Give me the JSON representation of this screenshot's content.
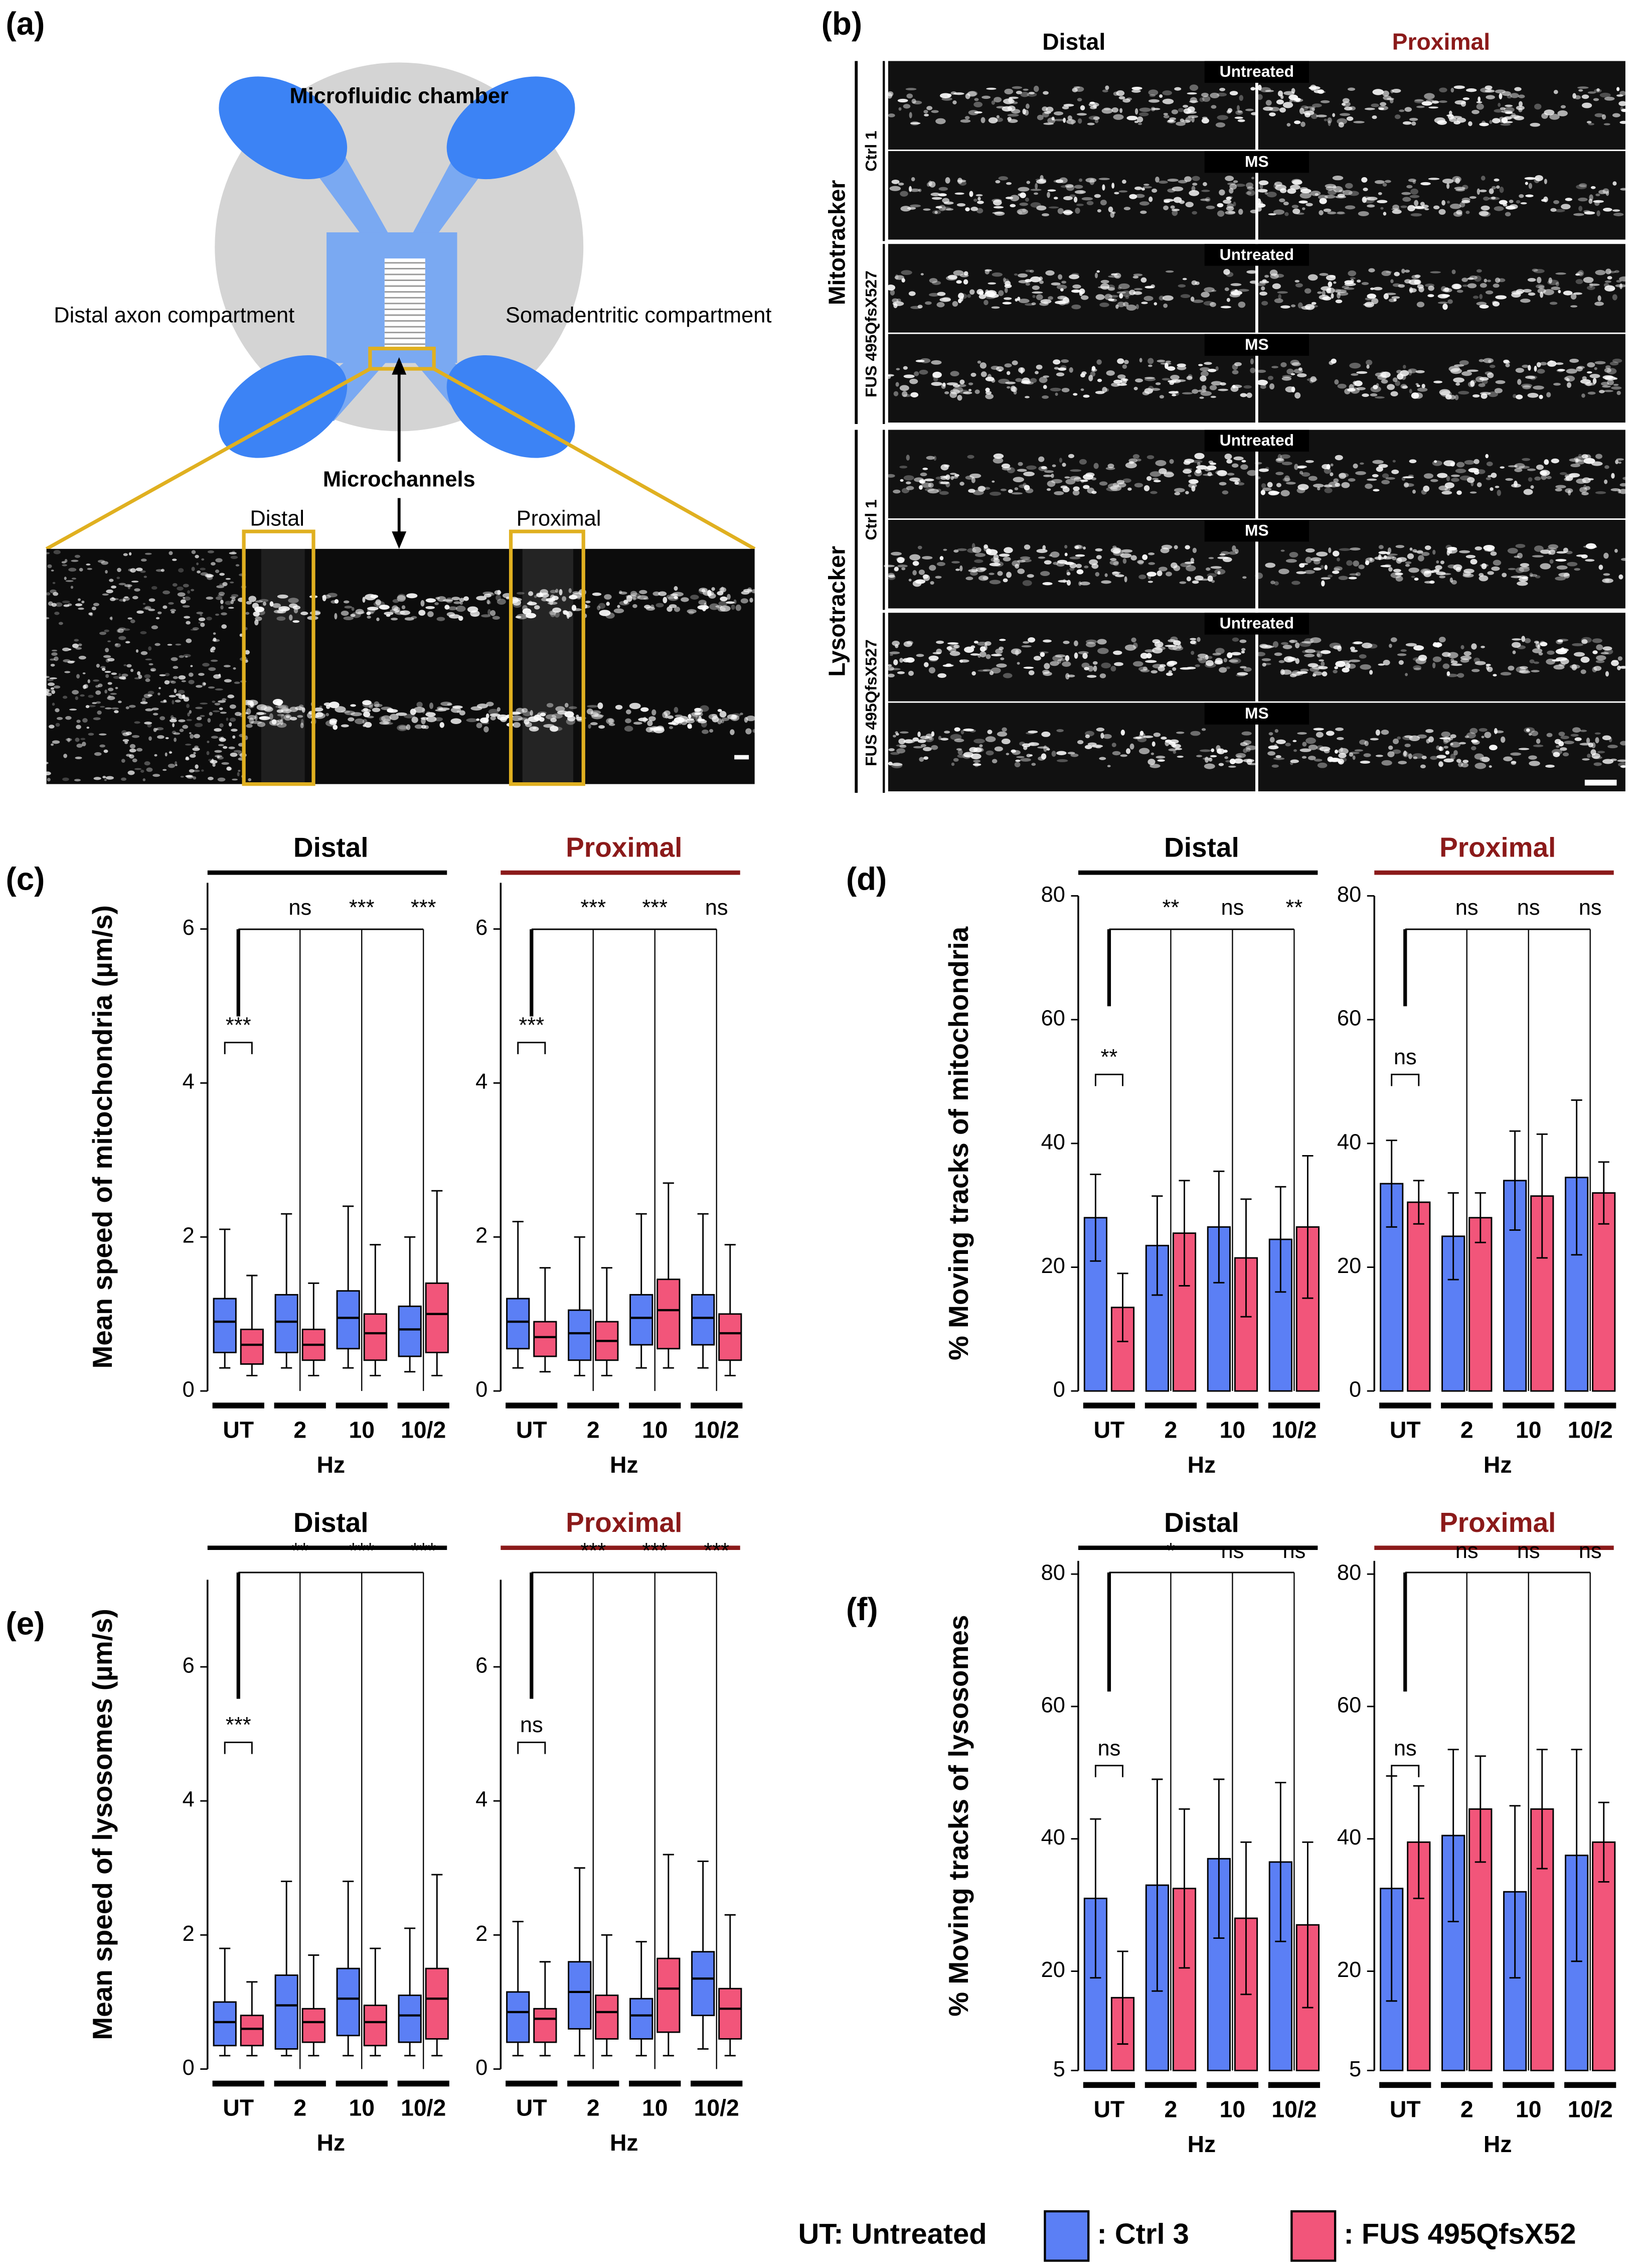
{
  "panel_a": {
    "label": "(a)",
    "title": "Microfluidic chamber",
    "left": "Distal axon compartment",
    "right": "Somadentritic compartment",
    "channels": "Microchannels",
    "distal": "Distal",
    "proximal": "Proximal"
  },
  "panel_b": {
    "label": "(b)",
    "col_headers": [
      "Distal",
      "Proximal"
    ],
    "groups": [
      {
        "name": "Mitotracker",
        "rows": [
          {
            "line": "Ctrl 1",
            "conditions": [
              "Untreated",
              "MS"
            ]
          },
          {
            "line": "FUS 495QfsX527",
            "conditions": [
              "Untreated",
              "MS"
            ]
          }
        ]
      },
      {
        "name": "Lysotracker",
        "rows": [
          {
            "line": "Ctrl 1",
            "conditions": [
              "Untreated",
              "MS"
            ]
          },
          {
            "line": "FUS 495QfsX527",
            "conditions": [
              "Untreated",
              "MS"
            ]
          }
        ]
      }
    ]
  },
  "chart_data": [
    {
      "type": "box",
      "panel": "(c)",
      "ylabel": "Mean speed of mitochondria (µm/s)",
      "xlabel": "Hz",
      "ylim": [
        0,
        6.6
      ],
      "yticks": [
        0,
        2,
        4,
        6
      ],
      "groups": [
        {
          "title": "Distal",
          "title_color": "#000000",
          "categories": [
            "UT",
            "2",
            "10",
            "10/2"
          ],
          "significance": [
            "***",
            "ns",
            "***",
            "***"
          ],
          "series": [
            {
              "color": "#5b7ff5",
              "values": [
                {
                  "whislo": 0.3,
                  "q1": 0.5,
                  "med": 0.9,
                  "q3": 1.2,
                  "whishi": 2.1
                },
                {
                  "whislo": 0.3,
                  "q1": 0.5,
                  "med": 0.9,
                  "q3": 1.25,
                  "whishi": 2.3
                },
                {
                  "whislo": 0.3,
                  "q1": 0.55,
                  "med": 0.95,
                  "q3": 1.3,
                  "whishi": 2.4
                },
                {
                  "whislo": 0.25,
                  "q1": 0.45,
                  "med": 0.8,
                  "q3": 1.1,
                  "whishi": 2.0
                }
              ]
            },
            {
              "color": "#f2557a",
              "values": [
                {
                  "whislo": 0.2,
                  "q1": 0.35,
                  "med": 0.6,
                  "q3": 0.8,
                  "whishi": 1.5
                },
                {
                  "whislo": 0.2,
                  "q1": 0.4,
                  "med": 0.6,
                  "q3": 0.8,
                  "whishi": 1.4
                },
                {
                  "whislo": 0.2,
                  "q1": 0.4,
                  "med": 0.75,
                  "q3": 1.0,
                  "whishi": 1.9
                },
                {
                  "whislo": 0.2,
                  "q1": 0.5,
                  "med": 1.0,
                  "q3": 1.4,
                  "whishi": 2.6
                }
              ]
            }
          ]
        },
        {
          "title": "Proximal",
          "title_color": "#8b1a1a",
          "categories": [
            "UT",
            "2",
            "10",
            "10/2"
          ],
          "significance": [
            "***",
            "***",
            "***",
            "ns"
          ],
          "series": [
            {
              "color": "#5b7ff5",
              "values": [
                {
                  "whislo": 0.3,
                  "q1": 0.55,
                  "med": 0.9,
                  "q3": 1.2,
                  "whishi": 2.2
                },
                {
                  "whislo": 0.2,
                  "q1": 0.4,
                  "med": 0.75,
                  "q3": 1.05,
                  "whishi": 2.0
                },
                {
                  "whislo": 0.3,
                  "q1": 0.6,
                  "med": 0.95,
                  "q3": 1.25,
                  "whishi": 2.3
                },
                {
                  "whislo": 0.3,
                  "q1": 0.6,
                  "med": 0.95,
                  "q3": 1.25,
                  "whishi": 2.3
                }
              ]
            },
            {
              "color": "#f2557a",
              "values": [
                {
                  "whislo": 0.25,
                  "q1": 0.45,
                  "med": 0.7,
                  "q3": 0.9,
                  "whishi": 1.6
                },
                {
                  "whislo": 0.2,
                  "q1": 0.4,
                  "med": 0.65,
                  "q3": 0.9,
                  "whishi": 1.6
                },
                {
                  "whislo": 0.3,
                  "q1": 0.55,
                  "med": 1.05,
                  "q3": 1.45,
                  "whishi": 2.7
                },
                {
                  "whislo": 0.2,
                  "q1": 0.4,
                  "med": 0.75,
                  "q3": 1.0,
                  "whishi": 1.9
                }
              ]
            }
          ]
        }
      ]
    },
    {
      "type": "bar",
      "panel": "(d)",
      "ylabel": "% Moving tracks of mitochondria",
      "xlabel": "Hz",
      "ylim": [
        0,
        80
      ],
      "yticks": [
        0,
        20,
        40,
        60,
        80
      ],
      "groups": [
        {
          "title": "Distal",
          "title_color": "#000000",
          "categories": [
            "UT",
            "2",
            "10",
            "10/2"
          ],
          "significance": [
            "**",
            "**",
            "ns",
            "**"
          ],
          "series": [
            {
              "color": "#5b7ff5",
              "values": [
                28,
                23.5,
                26.5,
                24.5
              ],
              "errors": [
                7,
                8,
                9,
                8.5
              ]
            },
            {
              "color": "#f2557a",
              "values": [
                13.5,
                25.5,
                21.5,
                26.5
              ],
              "errors": [
                5.5,
                8.5,
                9.5,
                11.5
              ]
            }
          ]
        },
        {
          "title": "Proximal",
          "title_color": "#8b1a1a",
          "categories": [
            "UT",
            "2",
            "10",
            "10/2"
          ],
          "significance": [
            "ns",
            "ns",
            "ns",
            "ns"
          ],
          "series": [
            {
              "color": "#5b7ff5",
              "values": [
                33.5,
                25,
                34,
                34.5
              ],
              "errors": [
                7,
                7,
                8,
                12.5
              ]
            },
            {
              "color": "#f2557a",
              "values": [
                30.5,
                28,
                31.5,
                32
              ],
              "errors": [
                3.5,
                4,
                10,
                5
              ]
            }
          ]
        }
      ]
    },
    {
      "type": "box",
      "panel": "(e)",
      "ylabel": "Mean speed of lysosomes (µm/s)",
      "xlabel": "Hz",
      "ylim": [
        0,
        7.3
      ],
      "yticks": [
        0,
        2,
        4,
        6
      ],
      "groups": [
        {
          "title": "Distal",
          "title_color": "#000000",
          "categories": [
            "UT",
            "2",
            "10",
            "10/2"
          ],
          "significance": [
            "***",
            "**",
            "***",
            "***"
          ],
          "series": [
            {
              "color": "#5b7ff5",
              "values": [
                {
                  "whislo": 0.2,
                  "q1": 0.35,
                  "med": 0.7,
                  "q3": 1.0,
                  "whishi": 1.8
                },
                {
                  "whislo": 0.2,
                  "q1": 0.3,
                  "med": 0.95,
                  "q3": 1.4,
                  "whishi": 2.8
                },
                {
                  "whislo": 0.2,
                  "q1": 0.5,
                  "med": 1.05,
                  "q3": 1.5,
                  "whishi": 2.8
                },
                {
                  "whislo": 0.2,
                  "q1": 0.4,
                  "med": 0.8,
                  "q3": 1.1,
                  "whishi": 2.1
                }
              ]
            },
            {
              "color": "#f2557a",
              "values": [
                {
                  "whislo": 0.2,
                  "q1": 0.35,
                  "med": 0.6,
                  "q3": 0.8,
                  "whishi": 1.3
                },
                {
                  "whislo": 0.2,
                  "q1": 0.4,
                  "med": 0.7,
                  "q3": 0.9,
                  "whishi": 1.7
                },
                {
                  "whislo": 0.2,
                  "q1": 0.35,
                  "med": 0.7,
                  "q3": 0.95,
                  "whishi": 1.8
                },
                {
                  "whislo": 0.2,
                  "q1": 0.45,
                  "med": 1.05,
                  "q3": 1.5,
                  "whishi": 2.9
                }
              ]
            }
          ]
        },
        {
          "title": "Proximal",
          "title_color": "#8b1a1a",
          "categories": [
            "UT",
            "2",
            "10",
            "10/2"
          ],
          "significance": [
            "ns",
            "***",
            "***",
            "***"
          ],
          "series": [
            {
              "color": "#5b7ff5",
              "values": [
                {
                  "whislo": 0.2,
                  "q1": 0.4,
                  "med": 0.85,
                  "q3": 1.15,
                  "whishi": 2.2
                },
                {
                  "whislo": 0.2,
                  "q1": 0.6,
                  "med": 1.15,
                  "q3": 1.6,
                  "whishi": 3.0
                },
                {
                  "whislo": 0.2,
                  "q1": 0.45,
                  "med": 0.8,
                  "q3": 1.05,
                  "whishi": 1.9
                },
                {
                  "whislo": 0.3,
                  "q1": 0.8,
                  "med": 1.35,
                  "q3": 1.75,
                  "whishi": 3.1
                }
              ]
            },
            {
              "color": "#f2557a",
              "values": [
                {
                  "whislo": 0.2,
                  "q1": 0.4,
                  "med": 0.75,
                  "q3": 0.9,
                  "whishi": 1.6
                },
                {
                  "whislo": 0.2,
                  "q1": 0.45,
                  "med": 0.85,
                  "q3": 1.1,
                  "whishi": 2.0
                },
                {
                  "whislo": 0.2,
                  "q1": 0.55,
                  "med": 1.2,
                  "q3": 1.65,
                  "whishi": 3.2
                },
                {
                  "whislo": 0.2,
                  "q1": 0.45,
                  "med": 0.9,
                  "q3": 1.2,
                  "whishi": 2.3
                }
              ]
            }
          ]
        }
      ]
    },
    {
      "type": "bar",
      "panel": "(f)",
      "ylabel": "% Moving tracks of lysosomes",
      "xlabel": "Hz",
      "ylim": [
        5,
        82
      ],
      "yticks": [
        5,
        20,
        40,
        60,
        80
      ],
      "groups": [
        {
          "title": "Distal",
          "title_color": "#000000",
          "categories": [
            "UT",
            "2",
            "10",
            "10/2"
          ],
          "significance": [
            "ns",
            "*",
            "ns",
            "ns"
          ],
          "series": [
            {
              "color": "#5b7ff5",
              "values": [
                31,
                33,
                37,
                36.5
              ],
              "errors": [
                12,
                16,
                12,
                12
              ]
            },
            {
              "color": "#f2557a",
              "values": [
                16,
                32.5,
                28,
                27
              ],
              "errors": [
                7,
                12,
                11.5,
                12.5
              ]
            }
          ]
        },
        {
          "title": "Proximal",
          "title_color": "#8b1a1a",
          "categories": [
            "UT",
            "2",
            "10",
            "10/2"
          ],
          "significance": [
            "ns",
            "ns",
            "ns",
            "ns"
          ],
          "series": [
            {
              "color": "#5b7ff5",
              "values": [
                32.5,
                40.5,
                32,
                37.5
              ],
              "errors": [
                17,
                13,
                13,
                16
              ]
            },
            {
              "color": "#f2557a",
              "values": [
                39.5,
                44.5,
                44.5,
                39.5
              ],
              "errors": [
                8.5,
                8,
                9,
                6
              ]
            }
          ]
        }
      ]
    }
  ],
  "legend": {
    "note": "UT: Untreated",
    "items": [
      {
        "label": ": Ctrl 3",
        "color": "#5b7ff5"
      },
      {
        "label": ": FUS 495QfsX52",
        "color": "#f2557a"
      }
    ]
  }
}
